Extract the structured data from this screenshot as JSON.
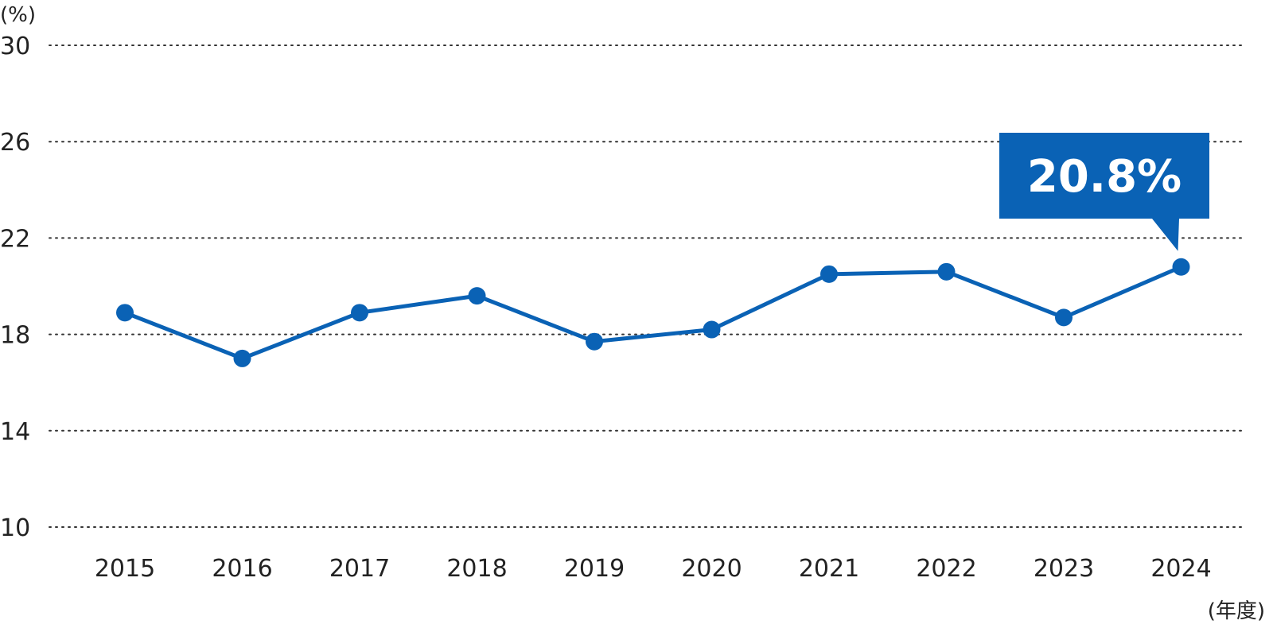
{
  "chart_data": {
    "type": "line",
    "y_unit_label": "(%)",
    "x_unit_label": "(年度)",
    "categories": [
      "2015",
      "2016",
      "2017",
      "2018",
      "2019",
      "2020",
      "2021",
      "2022",
      "2023",
      "2024"
    ],
    "series": [
      {
        "values": [
          18.9,
          17.0,
          18.9,
          19.6,
          17.7,
          18.2,
          20.5,
          20.6,
          18.7,
          20.8
        ],
        "color": "#0a62b5"
      }
    ],
    "yticks": [
      10,
      14,
      18,
      22,
      26,
      30
    ],
    "ylim": [
      10,
      30
    ],
    "grid": true,
    "grid_style": "dotted",
    "callout": {
      "text": "20.8%",
      "category": "2024",
      "color": "#0a62b5"
    }
  }
}
